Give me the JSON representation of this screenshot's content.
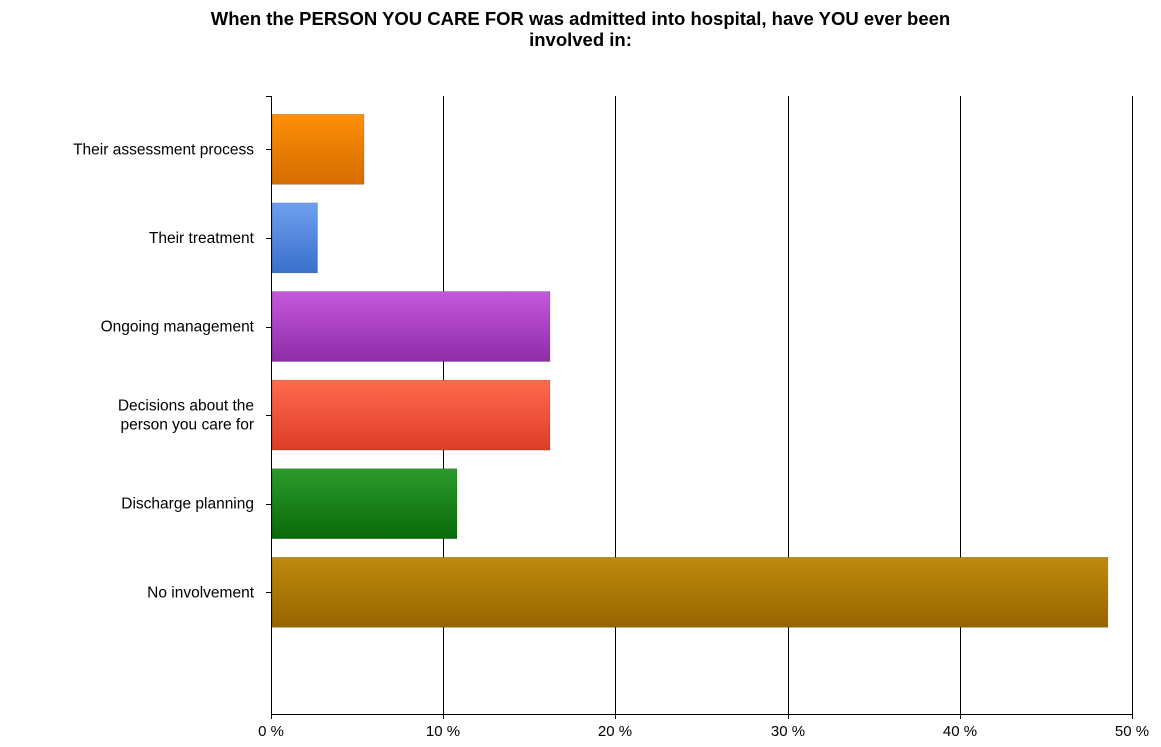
{
  "chart_data": {
    "type": "bar",
    "orientation": "horizontal",
    "title": "When the PERSON YOU CARE FOR was admitted into hospital, have YOU ever been involved in:",
    "title_lines": [
      "When the PERSON YOU CARE FOR was admitted into hospital, have YOU ever been",
      "involved in:"
    ],
    "categories": [
      [
        "Their assessment process"
      ],
      [
        "Their treatment"
      ],
      [
        "Ongoing management"
      ],
      [
        "Decisions about the",
        "person you care for"
      ],
      [
        "Discharge planning"
      ],
      [
        "No involvement"
      ]
    ],
    "values": [
      5.4,
      2.7,
      16.2,
      16.2,
      10.8,
      48.6
    ],
    "xlim": [
      0,
      50
    ],
    "xticks": [
      0,
      10,
      20,
      30,
      40,
      50
    ],
    "xtick_labels": [
      "0 %",
      "10 %",
      "20 %",
      "30 %",
      "40 %",
      "50 %"
    ],
    "xlabel": "",
    "ylabel": "",
    "grid": "vertical lines",
    "legend": "none",
    "colors": [
      [
        "#ff9008",
        "#d46c00"
      ],
      [
        "#6fa0ef",
        "#3a6fcb"
      ],
      [
        "#c458dc",
        "#8f2ca8"
      ],
      [
        "#ff6a4c",
        "#dd3d28"
      ],
      [
        "#2c9a2c",
        "#086a08"
      ],
      [
        "#bf8a0c",
        "#966400"
      ]
    ]
  }
}
